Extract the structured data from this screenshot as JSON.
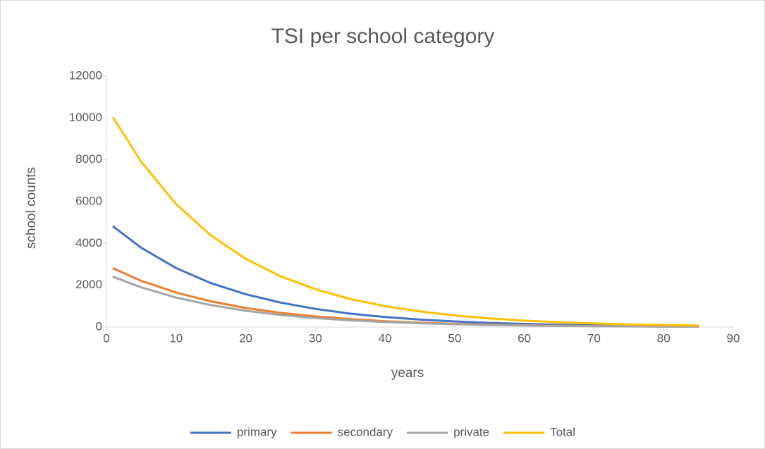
{
  "chart_data": {
    "type": "line",
    "title": "TSI per school category",
    "x_label": "years",
    "y_label": "school counts",
    "x": [
      1,
      5,
      10,
      15,
      20,
      25,
      30,
      35,
      40,
      45,
      50,
      55,
      60,
      65,
      70,
      75,
      80,
      85
    ],
    "series": [
      {
        "name": "primary",
        "color": "#4472c4",
        "values": [
          4800,
          3790,
          2820,
          2100,
          1570,
          1170,
          870,
          640,
          480,
          360,
          270,
          200,
          150,
          110,
          80,
          60,
          45,
          34
        ]
      },
      {
        "name": "secondary",
        "color": "#ed7d31",
        "values": [
          2800,
          2210,
          1650,
          1230,
          910,
          680,
          510,
          380,
          280,
          210,
          155,
          116,
          86,
          64,
          48,
          36,
          26,
          20
        ]
      },
      {
        "name": "private",
        "color": "#a5a5a5",
        "values": [
          2400,
          1900,
          1410,
          1050,
          780,
          580,
          430,
          320,
          240,
          180,
          133,
          99,
          74,
          55,
          41,
          30,
          23,
          17
        ]
      },
      {
        "name": "Total",
        "color": "#ffc000",
        "values": [
          10000,
          7900,
          5880,
          4380,
          3260,
          2430,
          1810,
          1340,
          1000,
          750,
          555,
          413,
          308,
          229,
          171,
          127,
          95,
          70
        ]
      }
    ],
    "xlim": [
      0,
      90
    ],
    "xticks": [
      0,
      10,
      20,
      30,
      40,
      50,
      60,
      70,
      80,
      90
    ],
    "ylim": [
      0,
      12000
    ],
    "yticks": [
      0,
      2000,
      4000,
      6000,
      8000,
      10000,
      12000
    ],
    "legend": "bottom",
    "grid": false
  }
}
